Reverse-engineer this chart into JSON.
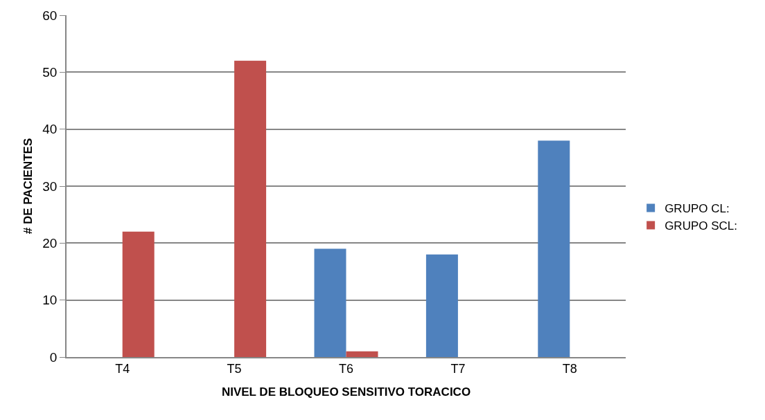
{
  "chart_data": {
    "type": "bar",
    "xlabel": "NIVEL DE BLOQUEO SENSITIVO TORACICO",
    "ylabel": "# DE PACIENTES",
    "categories": [
      "T4",
      "T5",
      "T6",
      "T7",
      "T8"
    ],
    "series": [
      {
        "name": "GRUPO CL:",
        "color": "#4f81bd",
        "values": [
          0,
          0,
          19,
          18,
          38
        ]
      },
      {
        "name": "GRUPO SCL:",
        "color": "#c0504d",
        "values": [
          22,
          52,
          1,
          0,
          0
        ]
      }
    ],
    "ylim": [
      0,
      60
    ],
    "yticks": [
      0,
      10,
      20,
      30,
      40,
      50,
      60
    ],
    "grid": "y",
    "legend": "right"
  }
}
